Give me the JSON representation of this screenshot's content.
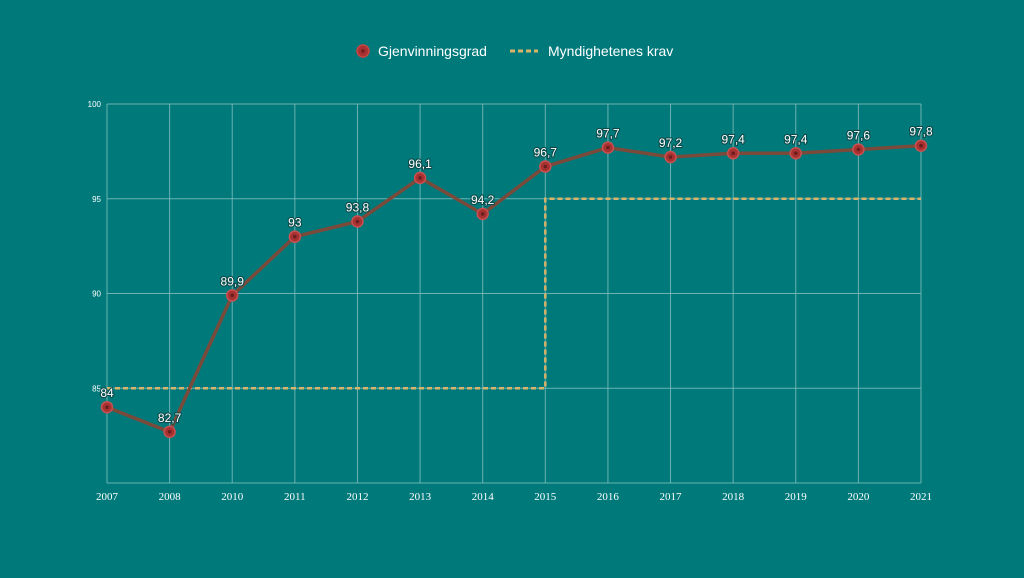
{
  "chart_data": {
    "type": "line",
    "categories": [
      "2007",
      "2008",
      "2010",
      "2011",
      "2012",
      "2013",
      "2014",
      "2015",
      "2016",
      "2017",
      "2018",
      "2019",
      "2020",
      "2021"
    ],
    "series": [
      {
        "name": "Gjenvinningsgrad",
        "values": [
          84,
          82.7,
          89.9,
          93,
          93.8,
          96.1,
          94.2,
          96.7,
          97.7,
          97.2,
          97.4,
          97.4,
          97.6,
          97.8
        ],
        "labels": [
          "84",
          "82,7",
          "89,9",
          "93",
          "93,8",
          "96,1",
          "94,2",
          "96,7",
          "97,7",
          "97,2",
          "97,4",
          "97,4",
          "97,6",
          "97,8"
        ],
        "color": "#7a4a3a",
        "marker_color": "#a83232",
        "style": "solid-with-markers"
      },
      {
        "name": "Myndighetenes krav",
        "values": [
          85,
          85,
          85,
          85,
          85,
          85,
          85,
          95,
          95,
          95,
          95,
          95,
          95,
          95
        ],
        "color": "#d9b36a",
        "style": "dashed-step"
      }
    ],
    "yticks": [
      "85",
      "90",
      "95",
      "100"
    ],
    "ytick_values": [
      85,
      90,
      95,
      100
    ],
    "ylim": [
      80,
      100
    ],
    "grid": true,
    "legend_position": "top-center",
    "background": "#00797a"
  }
}
